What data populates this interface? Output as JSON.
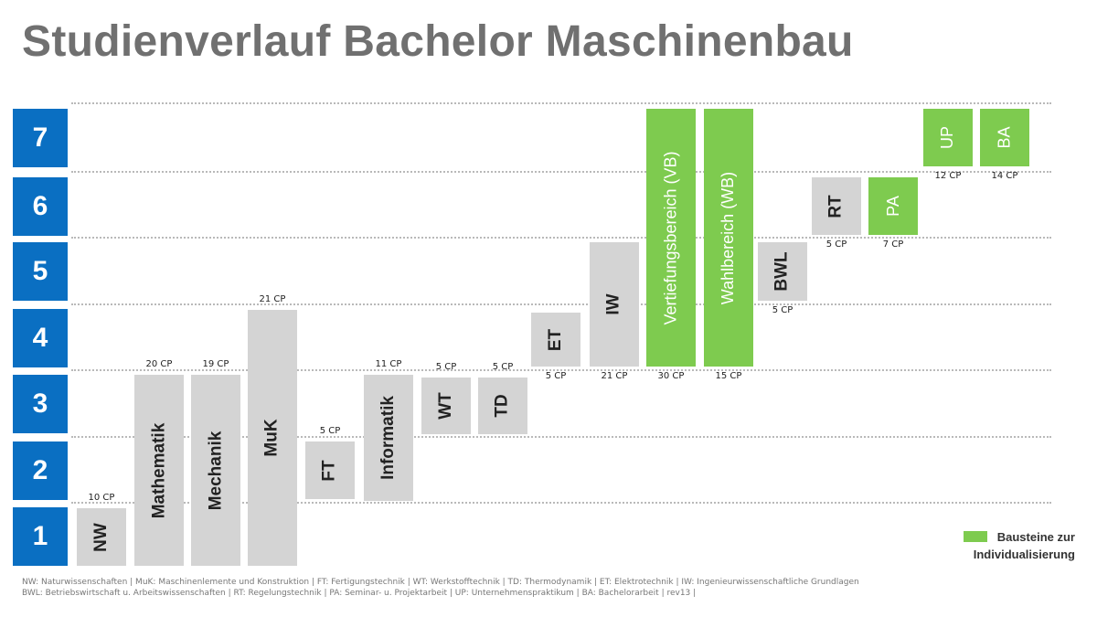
{
  "title": "Studienverlauf Bachelor Maschinenbau",
  "semesters": [
    "7",
    "6",
    "5",
    "4",
    "3",
    "2",
    "1"
  ],
  "modules": [
    {
      "name": "NW",
      "cp": "10 CP",
      "semester_from": 1,
      "semester_to": 1,
      "color": "gray"
    },
    {
      "name": "Mathematik",
      "cp": "20 CP",
      "semester_from": 1,
      "semester_to": 3,
      "color": "gray"
    },
    {
      "name": "Mechanik",
      "cp": "19 CP",
      "semester_from": 1,
      "semester_to": 3,
      "color": "gray"
    },
    {
      "name": "MuK",
      "cp": "21 CP",
      "semester_from": 1,
      "semester_to": 4,
      "color": "gray"
    },
    {
      "name": "FT",
      "cp": "5 CP",
      "semester_from": 2,
      "semester_to": 2,
      "color": "gray"
    },
    {
      "name": "Informatik",
      "cp": "11 CP",
      "semester_from": 2,
      "semester_to": 3,
      "color": "gray"
    },
    {
      "name": "WT",
      "cp": "5 CP",
      "semester_from": 3,
      "semester_to": 3,
      "color": "gray"
    },
    {
      "name": "TD",
      "cp": "5 CP",
      "semester_from": 3,
      "semester_to": 3,
      "color": "gray"
    },
    {
      "name": "ET",
      "cp": "5 CP",
      "semester_from": 4,
      "semester_to": 4,
      "color": "gray"
    },
    {
      "name": "IW",
      "cp": "21 CP",
      "semester_from": 4,
      "semester_to": 5,
      "color": "gray"
    },
    {
      "name": "Vertiefungsbereich (VB)",
      "cp": "30 CP",
      "semester_from": 4,
      "semester_to": 7,
      "color": "green"
    },
    {
      "name": "Wahlbereich (WB)",
      "cp": "15 CP",
      "semester_from": 4,
      "semester_to": 7,
      "color": "green"
    },
    {
      "name": "BWL",
      "cp": "5 CP",
      "semester_from": 5,
      "semester_to": 5,
      "color": "gray"
    },
    {
      "name": "RT",
      "cp": "5 CP",
      "semester_from": 6,
      "semester_to": 6,
      "color": "gray"
    },
    {
      "name": "PA",
      "cp": "7 CP",
      "semester_from": 6,
      "semester_to": 6,
      "color": "green"
    },
    {
      "name": "UP",
      "cp": "12 CP",
      "semester_from": 7,
      "semester_to": 7,
      "color": "green"
    },
    {
      "name": "BA",
      "cp": "14 CP",
      "semester_from": 7,
      "semester_to": 7,
      "color": "green"
    }
  ],
  "legend": {
    "label_line1": "Bausteine zur",
    "label_line2": "Individualisierung"
  },
  "footnote": {
    "line1": "NW: Naturwissenschaften | MuK: Maschinenlemente und Konstruktion | FT: Fertigungstechnik | WT: Werkstofftechnik | TD: Thermodynamik | ET: Elektrotechnik | IW: Ingenieurwissenschaftliche Grundlagen",
    "line2": "BWL: Betriebswirtschaft u. Arbeitswissenschaften | RT: Regelungstechnik | PA: Seminar- u. Projektarbeit | UP: Unternehmenspraktikum | BA: Bachelorarbeit | rev13 |"
  },
  "colors": {
    "semester_blue": "#0a6fc2",
    "module_gray": "#d4d4d4",
    "module_green": "#7ecb4f",
    "title_gray": "#707070"
  }
}
